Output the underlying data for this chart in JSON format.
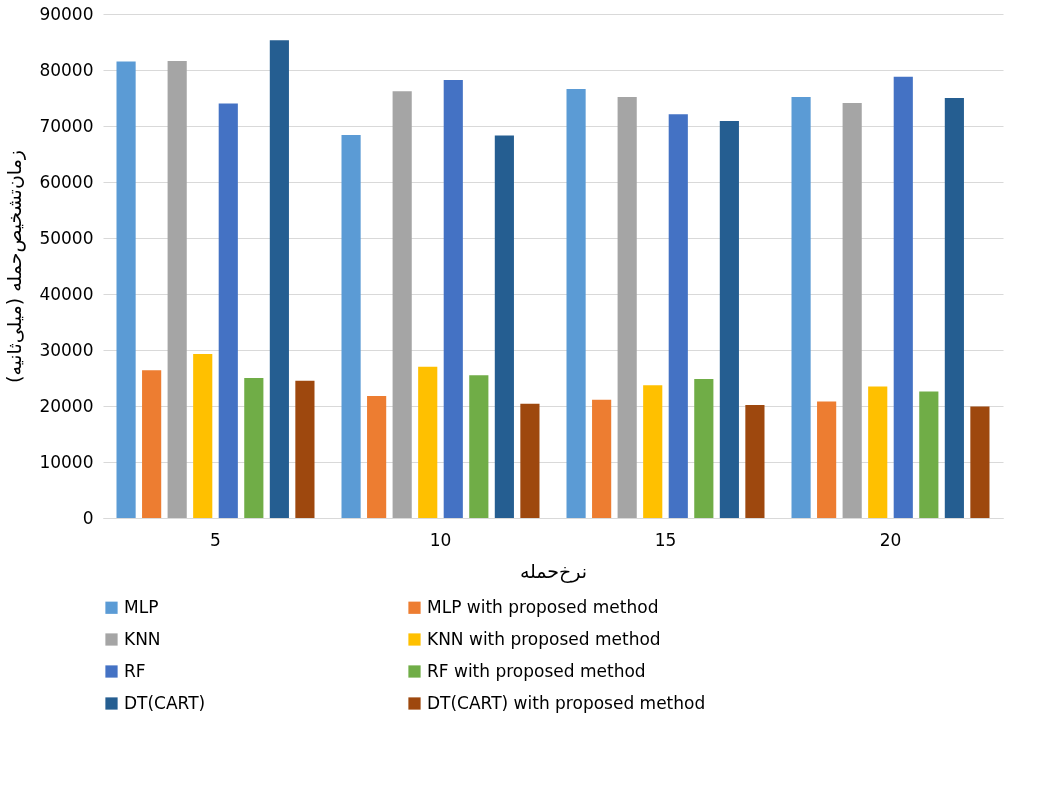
{
  "chart_data": {
    "type": "bar",
    "xlabel": "نرخ‌حمله",
    "ylabel": "زمان‌تشخیص‌حمله (میلی‌ثانیه)",
    "categories": [
      "5",
      "10",
      "15",
      "20"
    ],
    "series": [
      {
        "name": "MLP",
        "color": "#5b9bd5",
        "values": [
          81500,
          68400,
          76600,
          75200
        ]
      },
      {
        "name": "MLP with proposed method",
        "color": "#ed7d31",
        "values": [
          26400,
          21800,
          21100,
          20800
        ]
      },
      {
        "name": "KNN",
        "color": "#a5a5a5",
        "values": [
          81600,
          76200,
          75200,
          74100
        ]
      },
      {
        "name": "KNN with proposed method",
        "color": "#ffc000",
        "values": [
          29300,
          27000,
          23700,
          23500
        ]
      },
      {
        "name": "RF",
        "color": "#4472c4",
        "values": [
          74000,
          78200,
          72100,
          78800
        ]
      },
      {
        "name": "RF with proposed method",
        "color": "#70ad47",
        "values": [
          25000,
          25500,
          24800,
          22600
        ]
      },
      {
        "name": "DT(CART)",
        "color": "#255e91",
        "values": [
          85300,
          68300,
          70900,
          75000
        ]
      },
      {
        "name": "DT(CART) with proposed method",
        "color": "#9e480e",
        "values": [
          24500,
          20400,
          20200,
          19900
        ]
      }
    ],
    "ylim": [
      0,
      90000
    ],
    "yticks": [
      0,
      10000,
      20000,
      30000,
      40000,
      50000,
      60000,
      70000,
      80000,
      90000
    ],
    "grid": "y",
    "legend": "bottom"
  }
}
